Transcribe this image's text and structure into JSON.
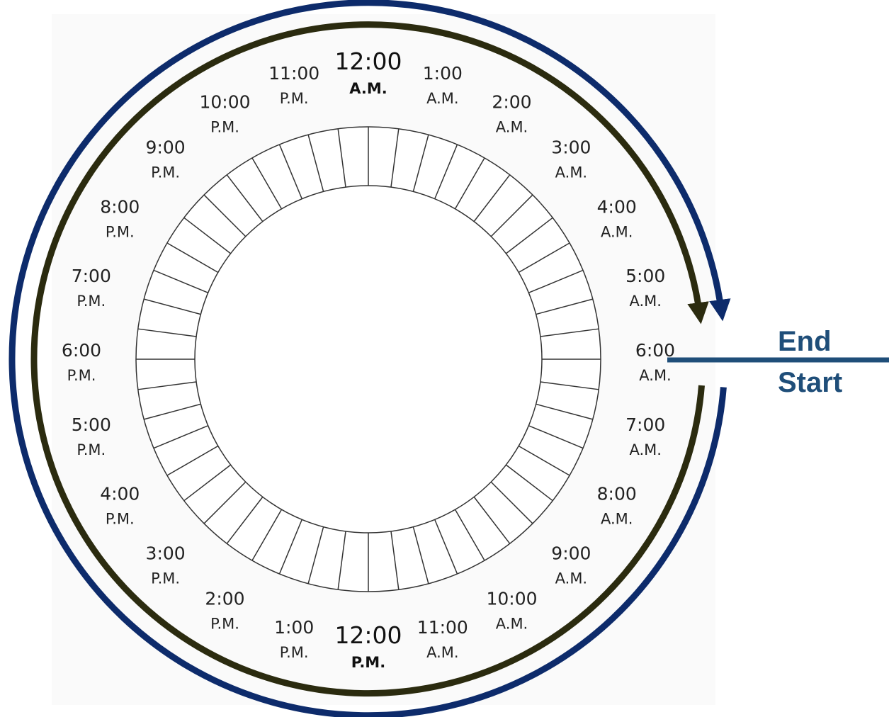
{
  "hours": [
    {
      "time": "12:00",
      "period": "A.M."
    },
    {
      "time": "1:00",
      "period": "A.M."
    },
    {
      "time": "2:00",
      "period": "A.M."
    },
    {
      "time": "3:00",
      "period": "A.M."
    },
    {
      "time": "4:00",
      "period": "A.M."
    },
    {
      "time": "5:00",
      "period": "A.M."
    },
    {
      "time": "6:00",
      "period": "A.M."
    },
    {
      "time": "7:00",
      "period": "A.M."
    },
    {
      "time": "8:00",
      "period": "A.M."
    },
    {
      "time": "9:00",
      "period": "A.M."
    },
    {
      "time": "10:00",
      "period": "A.M."
    },
    {
      "time": "11:00",
      "period": "A.M."
    },
    {
      "time": "12:00",
      "period": "P.M."
    },
    {
      "time": "1:00",
      "period": "P.M."
    },
    {
      "time": "2:00",
      "period": "P.M."
    },
    {
      "time": "3:00",
      "period": "P.M."
    },
    {
      "time": "4:00",
      "period": "P.M."
    },
    {
      "time": "5:00",
      "period": "P.M."
    },
    {
      "time": "6:00",
      "period": "P.M."
    },
    {
      "time": "7:00",
      "period": "P.M."
    },
    {
      "time": "8:00",
      "period": "P.M."
    },
    {
      "time": "9:00",
      "period": "P.M."
    },
    {
      "time": "10:00",
      "period": "P.M."
    },
    {
      "time": "11:00",
      "period": "P.M."
    }
  ],
  "markers": {
    "end": "End",
    "start": "Start"
  },
  "colors": {
    "outer_arrow": "#0d2b6b",
    "inner_arrow": "#2b2b0f",
    "marker_line": "#1f4e79",
    "marker_text": "#1f4e79",
    "ring_line": "#333333",
    "panel_background": "#fafafa"
  }
}
